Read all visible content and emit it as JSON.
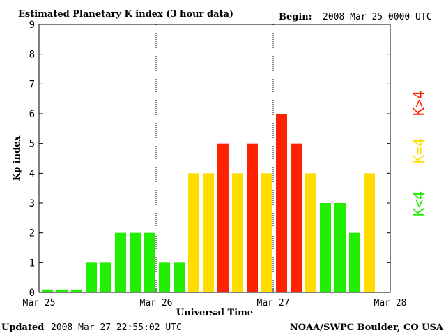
{
  "header": {
    "title": "Estimated Planetary K index (3 hour data)",
    "begin_label": "Begin:",
    "begin_value": "2008 Mar 25 0000 UTC"
  },
  "footer": {
    "updated_label": "Updated",
    "updated_value": "2008 Mar 27 22:55:02 UTC",
    "source": "NOAA/SWPC Boulder, CO USA"
  },
  "legend": {
    "high": "K>4",
    "equal": "K=4",
    "low": "K<4"
  },
  "colors": {
    "low": "#22ee00",
    "equal": "#ffdd00",
    "high": "#ff2200",
    "axis": "#000000",
    "divider": "#000000"
  },
  "chart_data": {
    "type": "bar",
    "title": "Estimated Planetary K index (3 hour data)",
    "xlabel": "Universal Time",
    "ylabel": "Kp index",
    "ylim": [
      0,
      9
    ],
    "yticks": [
      0,
      1,
      2,
      3,
      4,
      5,
      6,
      7,
      8,
      9
    ],
    "xticks": [
      "Mar 25",
      "Mar 26",
      "Mar 27",
      "Mar 28"
    ],
    "day_dividers": [
      "Mar 26",
      "Mar 27"
    ],
    "grid": false,
    "legend_position": "right",
    "interval_hours": 3,
    "values": [
      0.1,
      0.1,
      0.1,
      1,
      1,
      2,
      2,
      2,
      1,
      1,
      4,
      4,
      5,
      4,
      5,
      4,
      6,
      5,
      4,
      3,
      3,
      2,
      4
    ]
  }
}
